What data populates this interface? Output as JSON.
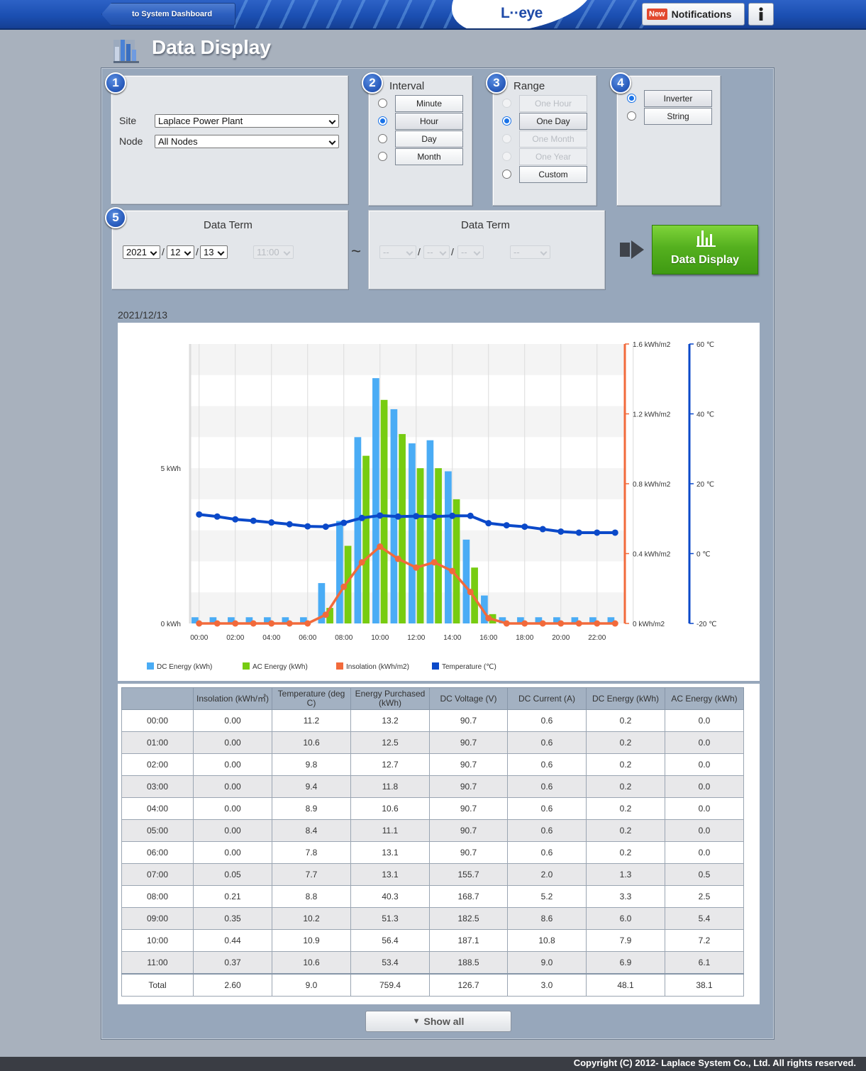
{
  "header": {
    "back_label": "to System Dashboard",
    "logo": "L··eye",
    "new_badge": "New",
    "notifications_label": "Notifications",
    "info_icon": "info-icon"
  },
  "page": {
    "title": "Data Display",
    "title_icon": "bar-chart-icon"
  },
  "steps": [
    "1",
    "2",
    "3",
    "4",
    "5"
  ],
  "site_box": {
    "site_label": "Site",
    "site_value": "Laplace Power Plant",
    "node_label": "Node",
    "node_value": "All Nodes"
  },
  "interval": {
    "title": "Interval",
    "options": [
      {
        "label": "Minute",
        "selected": false
      },
      {
        "label": "Hour",
        "selected": true
      },
      {
        "label": "Day",
        "selected": false
      },
      {
        "label": "Month",
        "selected": false
      }
    ]
  },
  "range": {
    "title": "Range",
    "options": [
      {
        "label": "One Hour",
        "selected": false,
        "disabled": true
      },
      {
        "label": "One Day",
        "selected": true,
        "disabled": false
      },
      {
        "label": "One Month",
        "selected": false,
        "disabled": true
      },
      {
        "label": "One Year",
        "selected": false,
        "disabled": true
      },
      {
        "label": "Custom",
        "selected": false,
        "disabled": false
      }
    ]
  },
  "target": {
    "options": [
      {
        "label": "Inverter",
        "selected": true
      },
      {
        "label": "String",
        "selected": false
      }
    ]
  },
  "data_term_start": {
    "title": "Data Term",
    "year": "2021",
    "month": "12",
    "day": "13",
    "time": "11:00",
    "sep1": "/",
    "sep2": "/"
  },
  "data_term_end": {
    "title": "Data Term",
    "year": "--",
    "month": "--",
    "day": "--",
    "time": "--",
    "sep1": "/",
    "sep2": "/"
  },
  "tilde": "~",
  "display_button": {
    "label": "Data Display"
  },
  "chart_date": "2021/12/13",
  "colors": {
    "dc_energy": "#4aacf5",
    "ac_energy": "#77cc11",
    "insolation": "#f26a3b",
    "temperature": "#0b49c9"
  },
  "chart_data": {
    "type": "bar",
    "x_ticks": [
      "00:00",
      "02:00",
      "04:00",
      "06:00",
      "08:00",
      "10:00",
      "12:00",
      "14:00",
      "16:00",
      "18:00",
      "20:00",
      "22:00"
    ],
    "y_left_ticks": [
      "0 kWh",
      "5 kWh"
    ],
    "y_insolation_ticks": [
      "0 kWh/m2",
      "0.4 kWh/m2",
      "0.8 kWh/m2",
      "1.2 kWh/m2",
      "1.6 kWh/m2"
    ],
    "y_temperature_ticks": [
      "-20 ℃",
      "0 ℃",
      "20 ℃",
      "40 ℃",
      "60 ℃"
    ],
    "ylim_energy": [
      0,
      9
    ],
    "ylim_insolation": [
      0,
      1.6
    ],
    "ylim_temperature": [
      -20,
      60
    ],
    "hours": [
      0,
      1,
      2,
      3,
      4,
      5,
      6,
      7,
      8,
      9,
      10,
      11,
      12,
      13,
      14,
      15,
      16,
      17,
      18,
      19,
      20,
      21,
      22,
      23
    ],
    "series": [
      {
        "name": "DC Energy (kWh)",
        "kind": "bar",
        "values": [
          0.2,
          0.2,
          0.2,
          0.2,
          0.2,
          0.2,
          0.2,
          1.3,
          3.3,
          6.0,
          7.9,
          6.9,
          5.8,
          5.9,
          4.9,
          2.7,
          0.9,
          0.2,
          0.2,
          0.2,
          0.2,
          0.2,
          0.2,
          0.2
        ]
      },
      {
        "name": "AC Energy (kWh)",
        "kind": "bar",
        "values": [
          0.0,
          0.0,
          0.0,
          0.0,
          0.0,
          0.0,
          0.0,
          0.5,
          2.5,
          5.4,
          7.2,
          6.1,
          5.0,
          5.0,
          4.0,
          1.8,
          0.3,
          0.0,
          0.0,
          0.0,
          0.0,
          0.0,
          0.0,
          0.0
        ]
      },
      {
        "name": "Insolation (kWh/m2)",
        "kind": "line",
        "axis": "insolation",
        "values": [
          0.0,
          0.0,
          0.0,
          0.0,
          0.0,
          0.0,
          0.0,
          0.05,
          0.21,
          0.35,
          0.44,
          0.37,
          0.32,
          0.35,
          0.3,
          0.18,
          0.03,
          0.0,
          0.0,
          0.0,
          0.0,
          0.0,
          0.0,
          0.0
        ]
      },
      {
        "name": "Temperature (℃)",
        "kind": "line",
        "axis": "temperature",
        "values": [
          11.2,
          10.6,
          9.8,
          9.4,
          8.9,
          8.4,
          7.8,
          7.7,
          8.8,
          10.2,
          10.9,
          10.6,
          10.7,
          10.6,
          10.8,
          10.8,
          8.7,
          8.1,
          7.7,
          7.0,
          6.3,
          6.0,
          6.0,
          6.0
        ]
      }
    ],
    "grid": true,
    "legend": "bottom-left"
  },
  "table": {
    "headers": [
      "",
      "Insolation (kWh/㎡)",
      "Temperature (deg C)",
      "Energy Purchased (kWh)",
      "DC Voltage (V)",
      "DC Current (A)",
      "DC Energy (kWh)",
      "AC Energy (kWh)"
    ],
    "rows": [
      [
        "00:00",
        "0.00",
        "11.2",
        "13.2",
        "90.7",
        "0.6",
        "0.2",
        "0.0"
      ],
      [
        "01:00",
        "0.00",
        "10.6",
        "12.5",
        "90.7",
        "0.6",
        "0.2",
        "0.0"
      ],
      [
        "02:00",
        "0.00",
        "9.8",
        "12.7",
        "90.7",
        "0.6",
        "0.2",
        "0.0"
      ],
      [
        "03:00",
        "0.00",
        "9.4",
        "11.8",
        "90.7",
        "0.6",
        "0.2",
        "0.0"
      ],
      [
        "04:00",
        "0.00",
        "8.9",
        "10.6",
        "90.7",
        "0.6",
        "0.2",
        "0.0"
      ],
      [
        "05:00",
        "0.00",
        "8.4",
        "11.1",
        "90.7",
        "0.6",
        "0.2",
        "0.0"
      ],
      [
        "06:00",
        "0.00",
        "7.8",
        "13.1",
        "90.7",
        "0.6",
        "0.2",
        "0.0"
      ],
      [
        "07:00",
        "0.05",
        "7.7",
        "13.1",
        "155.7",
        "2.0",
        "1.3",
        "0.5"
      ],
      [
        "08:00",
        "0.21",
        "8.8",
        "40.3",
        "168.7",
        "5.2",
        "3.3",
        "2.5"
      ],
      [
        "09:00",
        "0.35",
        "10.2",
        "51.3",
        "182.5",
        "8.6",
        "6.0",
        "5.4"
      ],
      [
        "10:00",
        "0.44",
        "10.9",
        "56.4",
        "187.1",
        "10.8",
        "7.9",
        "7.2"
      ],
      [
        "11:00",
        "0.37",
        "10.6",
        "53.4",
        "188.5",
        "9.0",
        "6.9",
        "6.1"
      ]
    ],
    "total": [
      "Total",
      "2.60",
      "9.0",
      "759.4",
      "126.7",
      "3.0",
      "48.1",
      "38.1"
    ]
  },
  "show_all": {
    "arrow": "▼",
    "label": "Show all"
  },
  "footer": {
    "copyright": "Copyright (C) 2012- Laplace System Co., Ltd. All rights reserved."
  }
}
